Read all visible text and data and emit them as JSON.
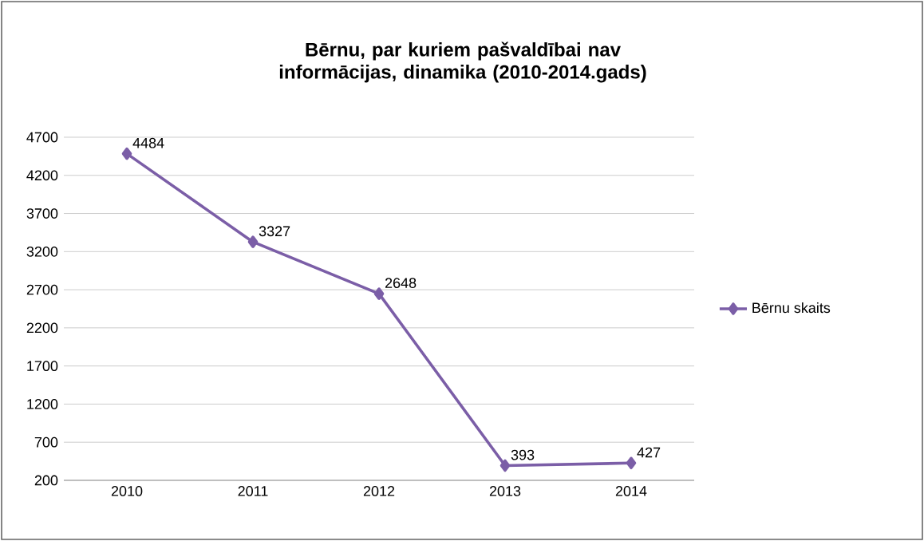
{
  "chart_data": {
    "type": "line",
    "title": "Bērnu, par kuriem pašvaldībai nav informācijas, dinamika (2010-2014.gads)",
    "categories": [
      "2010",
      "2011",
      "2012",
      "2013",
      "2014"
    ],
    "series": [
      {
        "name": "Bērnu skaits",
        "color": "#7b5ea7",
        "values": [
          4484,
          3327,
          2648,
          393,
          427
        ]
      }
    ],
    "ylim": [
      200,
      4700
    ],
    "yticks": [
      200,
      700,
      1200,
      1700,
      2200,
      2700,
      3200,
      3700,
      4200,
      4700
    ],
    "grid": "y",
    "legend": "right",
    "marker": "diamond",
    "line_style": "solid",
    "data_labels": true
  }
}
